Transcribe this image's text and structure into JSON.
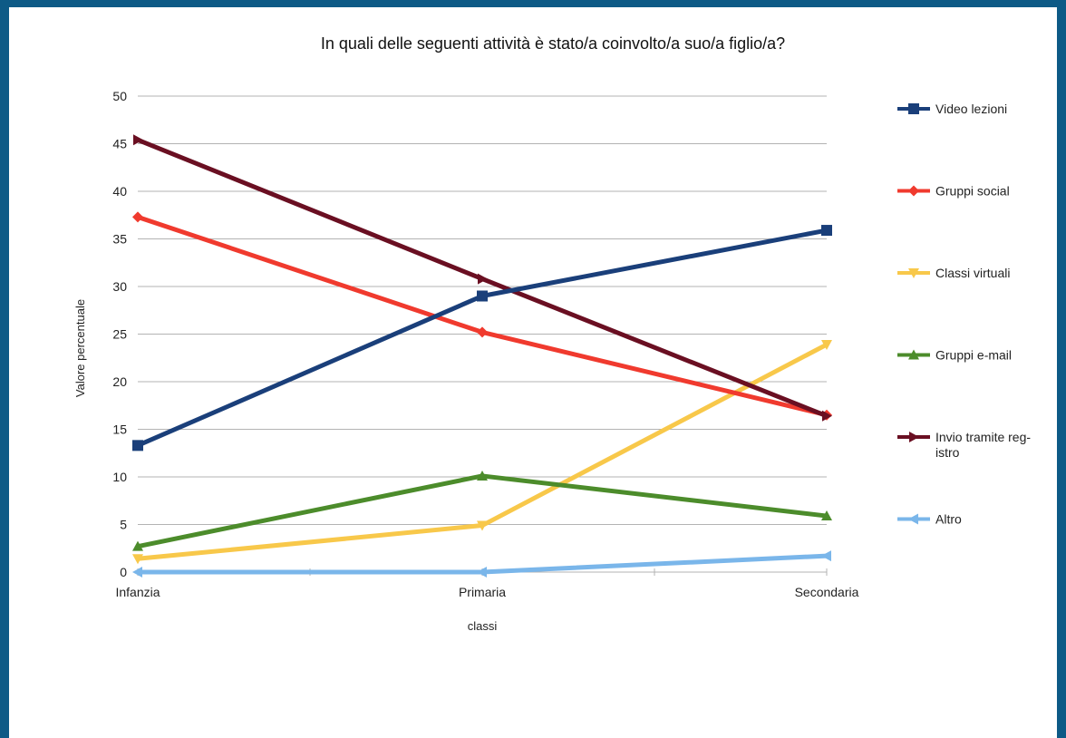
{
  "chart_data": {
    "type": "line",
    "title": "In quali delle seguenti attività è stato/a coinvolto/a suo/a figlio/a?",
    "xlabel": "classi",
    "ylabel": "Valore percentuale",
    "categories": [
      "Infanzia",
      "Primaria",
      "Secondaria"
    ],
    "ylim": [
      0,
      50
    ],
    "yticks": [
      "0",
      "5",
      "10",
      "15",
      "20",
      "25",
      "30",
      "35",
      "40",
      "45",
      "50"
    ],
    "grid": true,
    "legend_position": "right",
    "series": [
      {
        "name": "Video lezioni",
        "legend_lines": [
          "Video lezioni"
        ],
        "color": "#1a3f7a",
        "marker": "square",
        "values": [
          13.3,
          29.0,
          35.9
        ]
      },
      {
        "name": "Gruppi social",
        "legend_lines": [
          "Gruppi social"
        ],
        "color": "#f03a2e",
        "marker": "diamond",
        "values": [
          37.3,
          25.2,
          16.5
        ]
      },
      {
        "name": "Classi virtuali",
        "legend_lines": [
          "Classi virtuali"
        ],
        "color": "#f8c84a",
        "marker": "triangle-down",
        "values": [
          1.4,
          4.9,
          23.9
        ]
      },
      {
        "name": "Gruppi e-mail",
        "legend_lines": [
          "Gruppi e-mail"
        ],
        "color": "#4c8c2b",
        "marker": "triangle-up",
        "values": [
          2.7,
          10.1,
          5.9
        ]
      },
      {
        "name": "Invio tramite reg-istro",
        "legend_lines": [
          "Invio tramite reg-",
          "istro"
        ],
        "color": "#6a0f22",
        "marker": "triangle-right",
        "values": [
          45.4,
          30.8,
          16.4
        ]
      },
      {
        "name": "Altro",
        "legend_lines": [
          "Altro"
        ],
        "color": "#7ab6ea",
        "marker": "triangle-left",
        "values": [
          0.0,
          0.0,
          1.7
        ]
      }
    ]
  }
}
